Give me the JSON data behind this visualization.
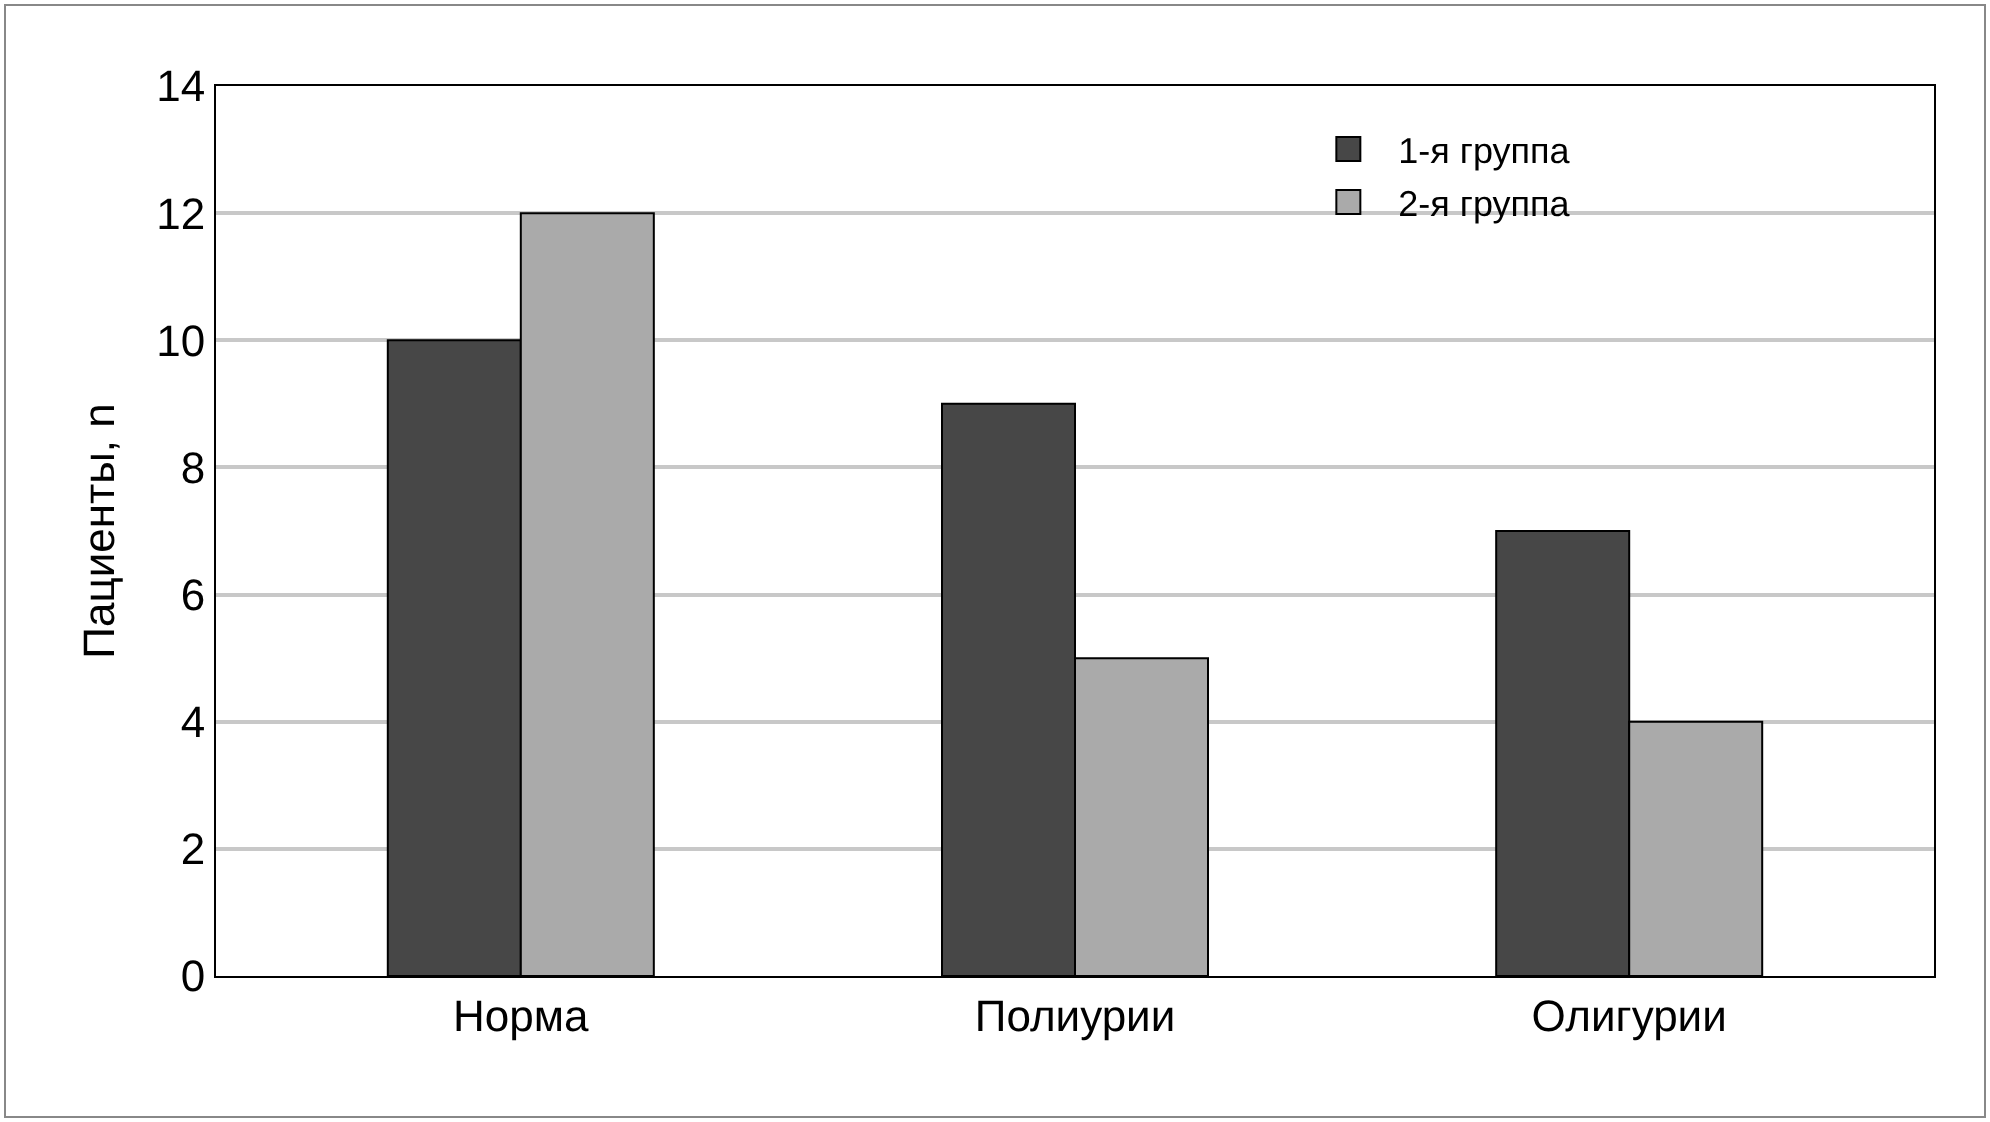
{
  "chart_data": {
    "type": "bar",
    "ylabel": "Пациенты, n",
    "categories": [
      "Норма",
      "Полиурии",
      "Олигурии"
    ],
    "series": [
      {
        "name": "1-я группа",
        "color": "#474747",
        "values": [
          10,
          9,
          7
        ]
      },
      {
        "name": "2-я группа",
        "color": "#aaaaaa",
        "values": [
          12,
          5,
          4
        ]
      }
    ],
    "ylim": [
      0,
      14
    ],
    "yticks": [
      0,
      2,
      4,
      6,
      8,
      10,
      12,
      14
    ],
    "grid": "y",
    "legend": "top right"
  }
}
